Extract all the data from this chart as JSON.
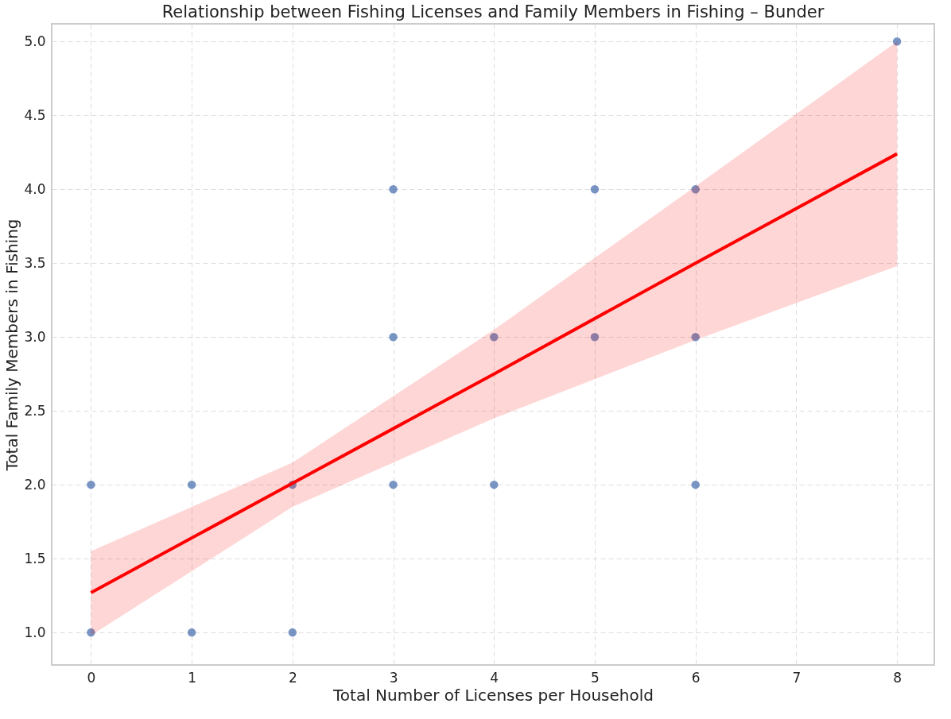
{
  "chart_data": {
    "type": "scatter",
    "title": "Relationship between Fishing Licenses and Family Members in Fishing – Bunder",
    "xlabel": "Total Number of Licenses per Household",
    "ylabel": "Total Family Members in Fishing",
    "series": [
      {
        "color": "#4c72b0",
        "marker": "circle",
        "x": [
          0,
          0,
          1,
          1,
          2,
          2,
          3,
          3,
          3,
          4,
          4,
          5,
          5,
          6,
          6,
          6,
          8
        ],
        "values": [
          2,
          1,
          2,
          1,
          2,
          1,
          4,
          3,
          2,
          3,
          2,
          4,
          3,
          4,
          3,
          2,
          5
        ]
      },
      {
        "type": "line",
        "color": "#ff0000",
        "line_style": "solid",
        "x": [
          0,
          2,
          4,
          6,
          8
        ],
        "values": [
          1.27,
          2.01,
          2.75,
          3.5,
          4.24
        ],
        "lower": [
          0.98,
          1.85,
          2.45,
          2.98,
          3.48
        ],
        "upper": [
          1.55,
          2.15,
          3.05,
          4.02,
          5.0
        ]
      }
    ],
    "xlim": [
      -0.39,
      8.37
    ],
    "ylim": [
      0.78,
      5.12
    ],
    "xticks": [
      0,
      1,
      2,
      3,
      4,
      5,
      6,
      7,
      8
    ],
    "yticks": [
      {
        "value": 1,
        "label": "1.0"
      },
      {
        "value": 1.5,
        "label": "1.5"
      },
      {
        "value": 2,
        "label": "2.0"
      },
      {
        "value": 2.5,
        "label": "2.5"
      },
      {
        "value": 3,
        "label": "3.0"
      },
      {
        "value": 3.5,
        "label": "3.5"
      },
      {
        "value": 4,
        "label": "4.0"
      },
      {
        "value": 4.5,
        "label": "4.5"
      },
      {
        "value": 5,
        "label": "5.0"
      }
    ],
    "grid": true
  }
}
